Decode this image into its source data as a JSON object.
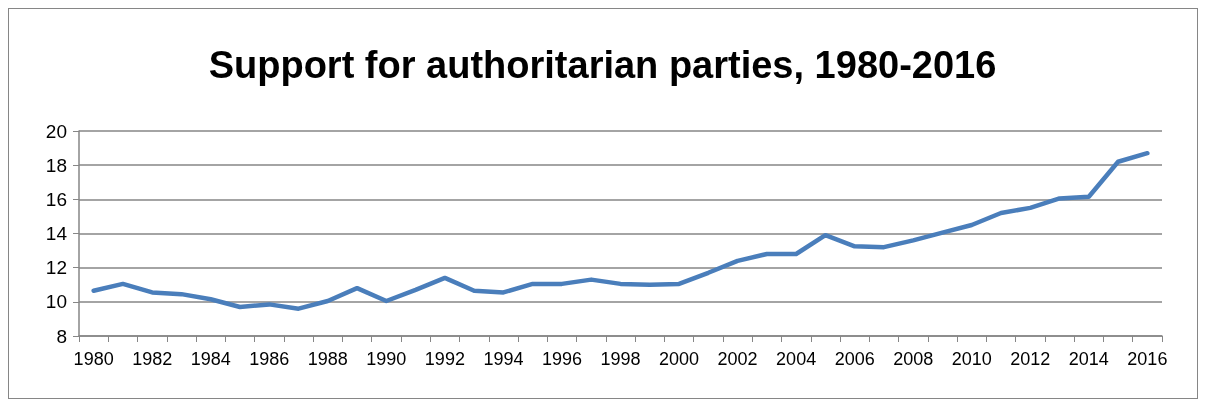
{
  "chart_data": {
    "type": "line",
    "title": "Support for authoritarian parties, 1980-2016",
    "categories": [
      "1980",
      null,
      "1982",
      null,
      "1984",
      null,
      "1986",
      null,
      "1988",
      null,
      "1990",
      null,
      "1992",
      null,
      "1994",
      null,
      "1996",
      null,
      "1998",
      null,
      "2000",
      null,
      "2002",
      null,
      "2004",
      null,
      "2006",
      null,
      "2008",
      null,
      "2010",
      null,
      "2012",
      null,
      "2014",
      null,
      "2016"
    ],
    "series": [
      {
        "color": "#4a7ebb",
        "values": [
          10.65,
          11.05,
          10.55,
          10.45,
          10.15,
          9.7,
          9.85,
          9.6,
          10.05,
          10.8,
          10.05,
          10.7,
          11.4,
          10.65,
          10.55,
          11.05,
          11.05,
          11.3,
          11.05,
          11.0,
          11.05,
          11.7,
          12.4,
          12.8,
          12.8,
          13.9,
          13.25,
          13.2,
          13.6,
          14.05,
          14.5,
          15.2,
          15.5,
          16.05,
          16.15,
          18.2,
          18.7
        ]
      }
    ],
    "ylim": [
      8,
      20
    ],
    "yticks": [
      8,
      10,
      12,
      14,
      16,
      18,
      20
    ],
    "grid": "y",
    "marker": "none",
    "line_style": "solid"
  }
}
